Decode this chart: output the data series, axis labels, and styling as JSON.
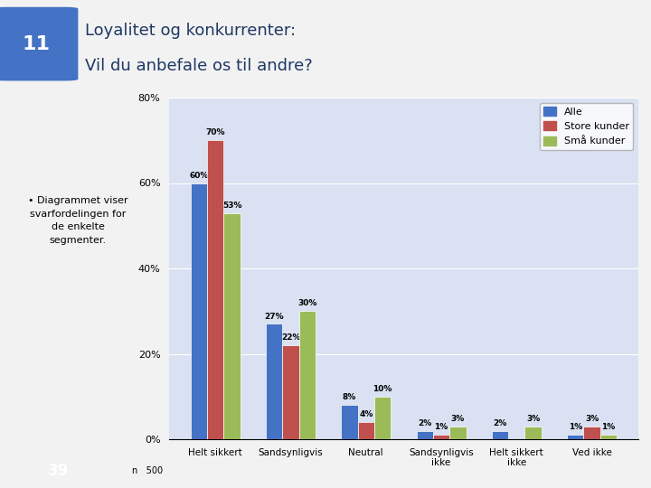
{
  "categories": [
    "Helt sikkert",
    "Sandsynligvis",
    "Neutral",
    "Sandsynligvis\nikke",
    "Helt sikkert\nikke",
    "Ved ikke"
  ],
  "series": {
    "Alle": [
      60,
      27,
      8,
      2,
      2,
      1
    ],
    "Store kunder": [
      70,
      22,
      4,
      1,
      0,
      3
    ],
    "Små kunder": [
      53,
      30,
      10,
      3,
      3,
      1
    ]
  },
  "colors": {
    "Alle": "#4472C4",
    "Store kunder": "#C0504D",
    "Små kunder": "#9BBB59"
  },
  "ylim": [
    0,
    80
  ],
  "yticks": [
    0,
    20,
    40,
    60,
    80
  ],
  "ytick_labels": [
    "0%",
    "20%",
    "40%",
    "60%",
    "80%"
  ],
  "plot_bg": "#D9E1F2",
  "grid_color": "#FFFFFF",
  "title": "Loyalitet og konkurrenter:\nVil du anbefale os til andre?",
  "slide_number": "11",
  "footnote": "n   500",
  "bar_width": 0.22,
  "legend_order": [
    "Alle",
    "Store kunder",
    "Små kunder"
  ]
}
